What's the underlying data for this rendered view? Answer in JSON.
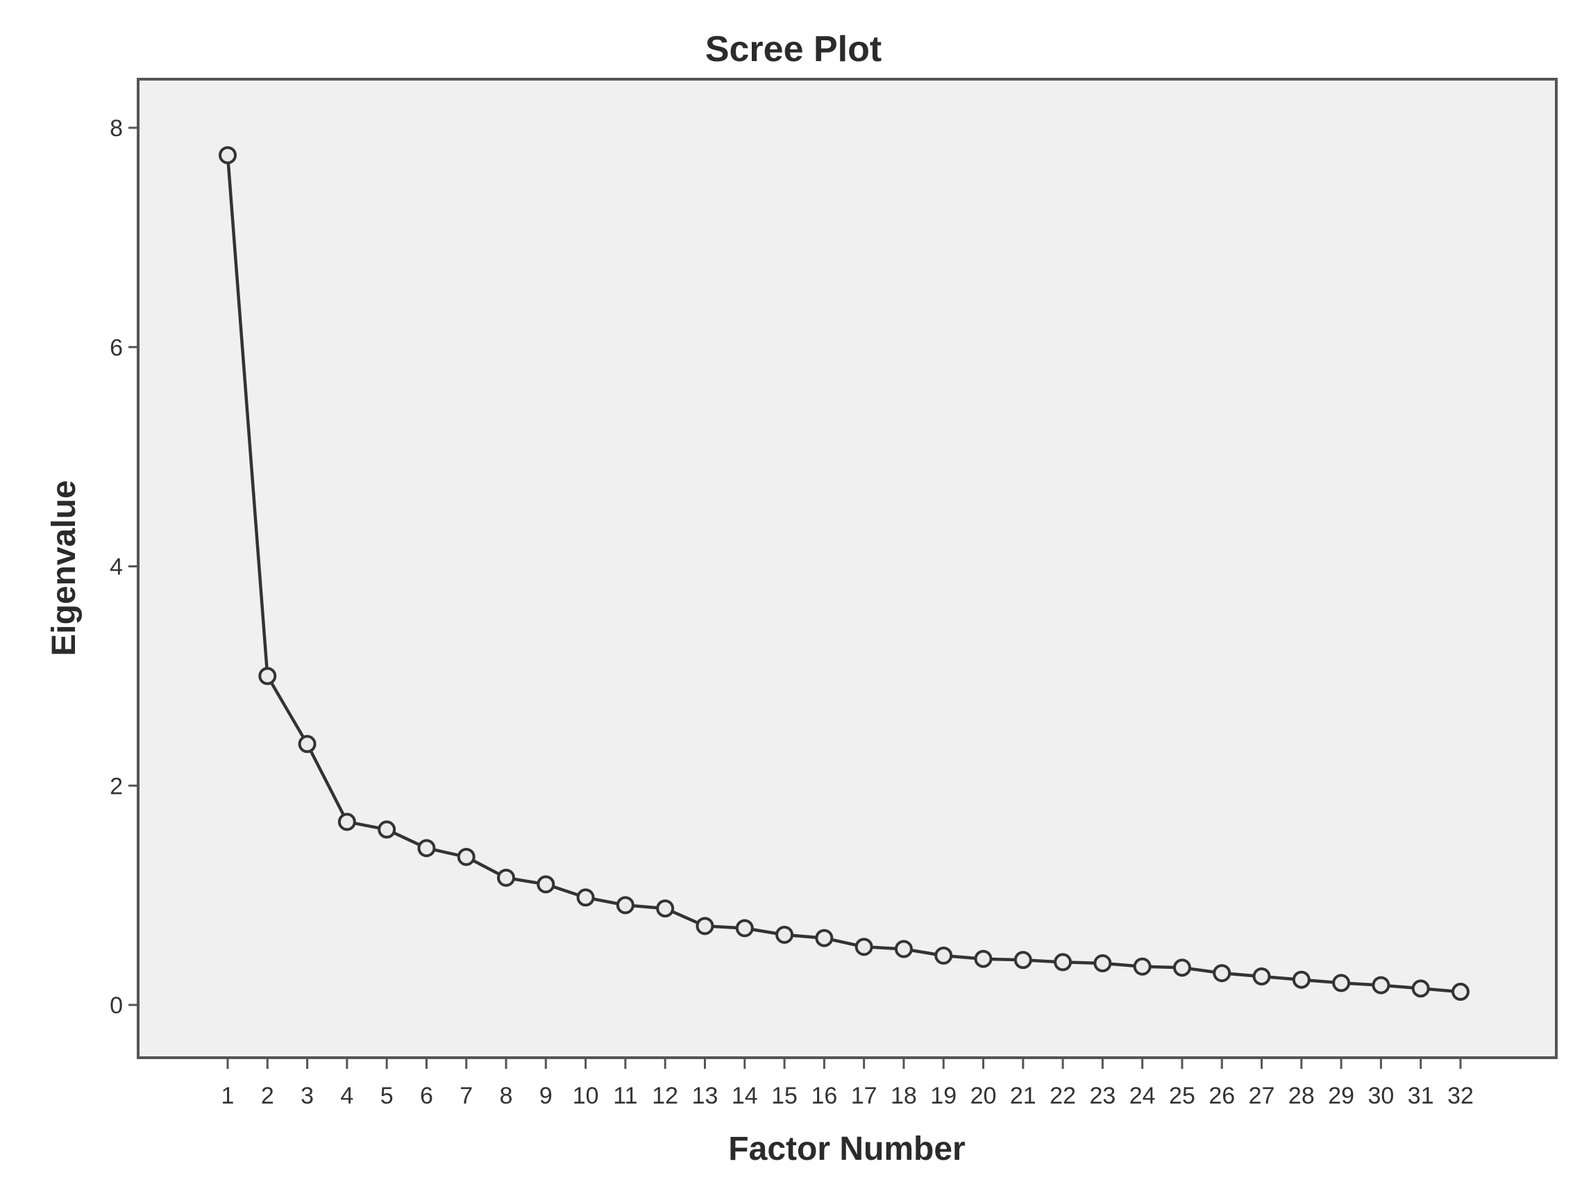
{
  "chart_data": {
    "type": "line",
    "title": "Scree Plot",
    "xlabel": "Factor Number",
    "ylabel": "Eigenvalue",
    "x": [
      1,
      2,
      3,
      4,
      5,
      6,
      7,
      8,
      9,
      10,
      11,
      12,
      13,
      14,
      15,
      16,
      17,
      18,
      19,
      20,
      21,
      22,
      23,
      24,
      25,
      26,
      27,
      28,
      29,
      30,
      31,
      32
    ],
    "y": [
      7.75,
      3.0,
      2.38,
      1.67,
      1.6,
      1.43,
      1.35,
      1.16,
      1.1,
      0.98,
      0.91,
      0.88,
      0.72,
      0.7,
      0.64,
      0.61,
      0.53,
      0.51,
      0.45,
      0.42,
      0.41,
      0.39,
      0.38,
      0.35,
      0.34,
      0.29,
      0.26,
      0.23,
      0.2,
      0.18,
      0.15,
      0.12
    ],
    "xlim": [
      1,
      32
    ],
    "ylim": [
      -0.4,
      8.4
    ],
    "yticks": [
      0,
      2,
      4,
      6,
      8
    ],
    "grid": false,
    "legend": "none",
    "colors": {
      "background": "#f0f0f0",
      "line": "#333333",
      "marker_fill": "#ebebeb"
    }
  }
}
